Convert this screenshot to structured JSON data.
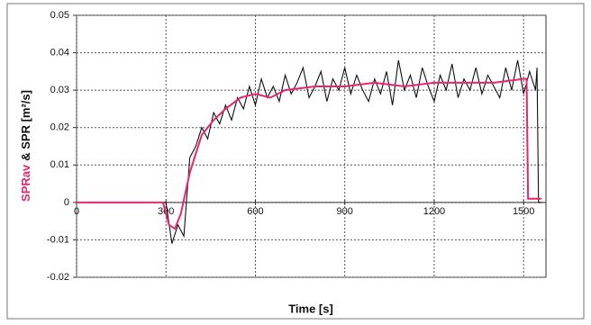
{
  "chart_data": {
    "type": "line",
    "xlabel": "Time [s]",
    "ylabel_parts": [
      "SPRav",
      "& SPR [m²/s]"
    ],
    "ylabel_colors": [
      "#e8256e",
      "#111111"
    ],
    "xlim": [
      0,
      1575
    ],
    "ylim": [
      -0.02,
      0.05
    ],
    "xticks": [
      0,
      300,
      600,
      900,
      1200,
      1500
    ],
    "yticks": [
      -0.02,
      -0.01,
      0,
      0.01,
      0.02,
      0.03,
      0.04,
      0.05
    ],
    "grid": true,
    "series": [
      {
        "name": "SPR",
        "color": "#111111",
        "x": [
          0,
          20,
          40,
          60,
          80,
          100,
          120,
          140,
          160,
          180,
          200,
          220,
          240,
          260,
          280,
          300,
          320,
          340,
          360,
          380,
          400,
          420,
          440,
          460,
          480,
          500,
          520,
          540,
          560,
          580,
          600,
          620,
          640,
          660,
          680,
          700,
          720,
          740,
          760,
          780,
          800,
          820,
          840,
          860,
          880,
          900,
          920,
          940,
          960,
          980,
          1000,
          1020,
          1040,
          1060,
          1080,
          1100,
          1120,
          1140,
          1160,
          1180,
          1200,
          1220,
          1240,
          1260,
          1280,
          1300,
          1320,
          1340,
          1360,
          1380,
          1400,
          1420,
          1440,
          1460,
          1480,
          1500,
          1520,
          1540,
          1545,
          1550,
          1560
        ],
        "values": [
          0,
          0,
          0,
          0,
          0,
          0,
          0,
          0,
          0,
          0,
          0,
          0,
          0,
          0,
          0,
          0,
          -0.011,
          -0.006,
          -0.009,
          0.012,
          0.015,
          0.02,
          0.017,
          0.024,
          0.021,
          0.026,
          0.022,
          0.028,
          0.025,
          0.031,
          0.026,
          0.033,
          0.028,
          0.031,
          0.027,
          0.034,
          0.029,
          0.032,
          0.036,
          0.028,
          0.031,
          0.035,
          0.027,
          0.033,
          0.03,
          0.036,
          0.029,
          0.034,
          0.03,
          0.027,
          0.033,
          0.029,
          0.035,
          0.026,
          0.038,
          0.03,
          0.034,
          0.028,
          0.036,
          0.031,
          0.027,
          0.034,
          0.03,
          0.037,
          0.028,
          0.033,
          0.03,
          0.036,
          0.029,
          0.034,
          0.031,
          0.028,
          0.036,
          0.03,
          0.038,
          0.029,
          0.035,
          0.03,
          0.036,
          0,
          0
        ]
      },
      {
        "name": "SPRav",
        "color": "#e8256e",
        "x": [
          0,
          290,
          310,
          330,
          350,
          380,
          420,
          460,
          500,
          550,
          600,
          650,
          700,
          800,
          900,
          1000,
          1100,
          1200,
          1300,
          1400,
          1500,
          1510,
          1515,
          1560
        ],
        "values": [
          0,
          0,
          -0.006,
          -0.007,
          -0.003,
          0.008,
          0.018,
          0.022,
          0.025,
          0.028,
          0.029,
          0.028,
          0.03,
          0.031,
          0.031,
          0.032,
          0.031,
          0.032,
          0.032,
          0.032,
          0.033,
          0.033,
          0.001,
          0.001
        ]
      }
    ]
  }
}
